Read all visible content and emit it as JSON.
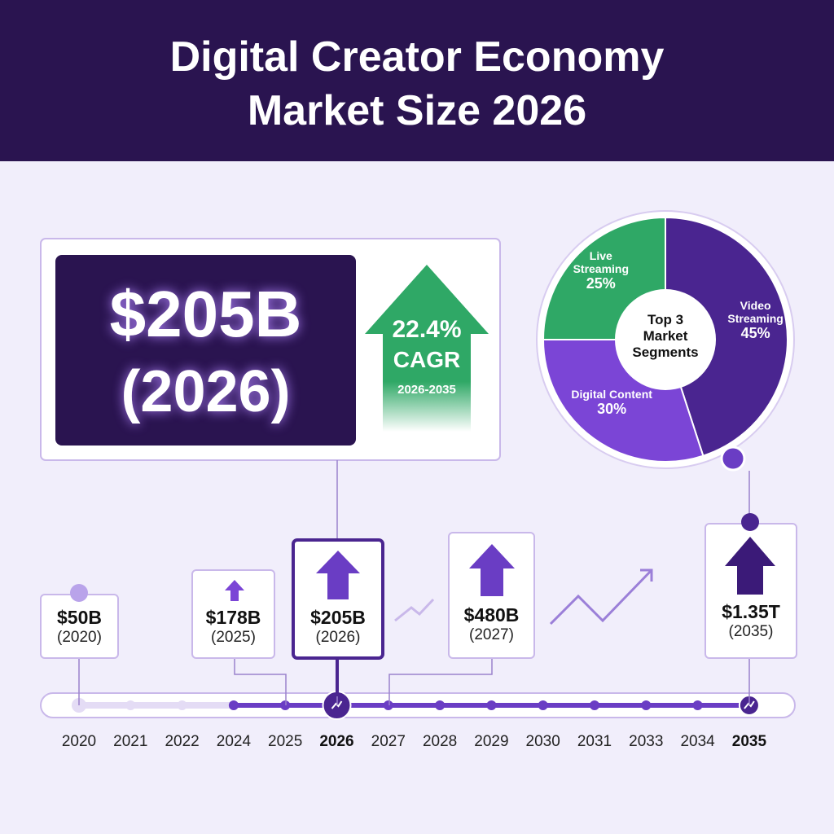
{
  "header": {
    "title_line1": "Digital Creator Economy",
    "title_line2": "Market Size 2026"
  },
  "kpi": {
    "value": "$205B",
    "year": "(2026)",
    "growth": "22.4%",
    "growth_label": "CAGR",
    "growth_period": "2026-2035"
  },
  "chart_data": {
    "type": "pie",
    "title": "Top 3 Market Segments",
    "categories": [
      "Video Streaming",
      "Digital Content",
      "Live Streaming"
    ],
    "values": [
      45,
      30,
      25
    ],
    "value_labels": [
      "45%",
      "30%",
      "25%"
    ],
    "colors": [
      "#4a2590",
      "#7b45d6",
      "#2fa866"
    ]
  },
  "timeline": {
    "years": [
      "2020",
      "2021",
      "2022",
      "2024",
      "2025",
      "2026",
      "2027",
      "2028",
      "2029",
      "2030",
      "2031",
      "2033",
      "2034",
      "2035"
    ],
    "callouts": [
      {
        "value": "$50B",
        "year": "(2020)"
      },
      {
        "value": "$178B",
        "year": "(2025)"
      },
      {
        "value": "$205B",
        "year": "(2026)"
      },
      {
        "value": "$480B",
        "year": "(2027)"
      },
      {
        "value": "$1.35T",
        "year": "(2035)"
      }
    ]
  }
}
